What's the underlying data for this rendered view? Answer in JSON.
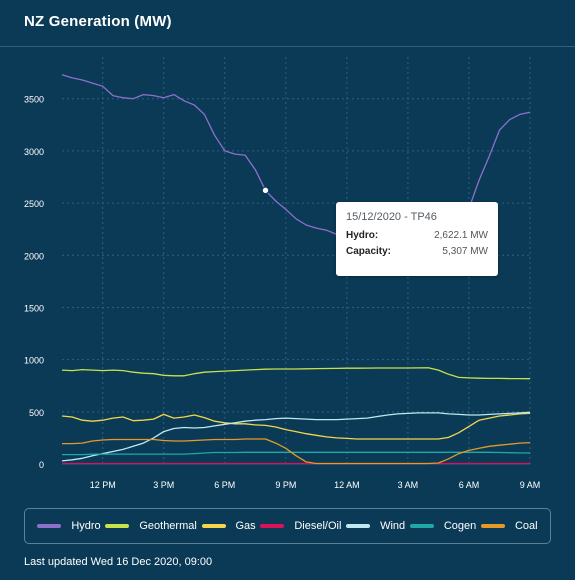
{
  "header": {
    "title": "NZ Generation (MW)"
  },
  "tooltip": {
    "heading": "15/12/2020 - TP46",
    "rows": [
      {
        "label": "Hydro:",
        "value": "2,622.1 MW"
      },
      {
        "label": "Capacity:",
        "value": "5,307 MW"
      }
    ]
  },
  "footer": {
    "updated": "Last updated Wed 16 Dec 2020, 09:00"
  },
  "colors": {
    "Hydro": "#8e6fc9",
    "Geothermal": "#c8e24a",
    "Gas": "#f2d64b",
    "Diesel/Oil": "#d8135a",
    "Wind": "#bfe8f3",
    "Cogen": "#1fa8a6",
    "Coal": "#e59a27"
  },
  "chart_data": {
    "type": "line",
    "x_unit": "hours from 10 AM",
    "x": [
      0,
      0.5,
      1,
      1.5,
      2,
      2.5,
      3,
      3.5,
      4,
      4.5,
      5,
      5.5,
      6,
      6.5,
      7,
      7.5,
      8,
      8.5,
      9,
      9.5,
      10,
      10.5,
      11,
      11.5,
      12,
      12.5,
      13,
      13.5,
      14,
      14.5,
      15,
      15.5,
      16,
      16.5,
      17,
      17.5,
      18,
      18.5,
      19,
      19.5,
      20,
      20.5,
      21,
      21.5,
      22,
      22.5,
      23
    ],
    "xticks": [
      {
        "x": 2,
        "label": "12 PM"
      },
      {
        "x": 5,
        "label": "3 PM"
      },
      {
        "x": 8,
        "label": "6 PM"
      },
      {
        "x": 11,
        "label": "9 PM"
      },
      {
        "x": 14,
        "label": "12 AM"
      },
      {
        "x": 17,
        "label": "3 AM"
      },
      {
        "x": 20,
        "label": "6 AM"
      },
      {
        "x": 23,
        "label": "9 AM"
      }
    ],
    "yticks": [
      0,
      500,
      1000,
      1500,
      2000,
      2500,
      3000,
      3500
    ],
    "ylim": [
      0,
      3900
    ],
    "grid": true,
    "legend": "bottom",
    "series": [
      {
        "name": "Hydro",
        "values": [
          3730,
          3700,
          3680,
          3650,
          3620,
          3530,
          3510,
          3500,
          3540,
          3530,
          3510,
          3540,
          3480,
          3440,
          3350,
          3150,
          3000,
          2970,
          2960,
          2820,
          2622,
          2520,
          2440,
          2350,
          2290,
          2260,
          2240,
          2200,
          2190,
          2200,
          2160,
          2130,
          2120,
          2100,
          2080,
          2060,
          2050,
          2080,
          2150,
          2280,
          2450,
          2720,
          2950,
          3200,
          3300,
          3350,
          3370
        ]
      },
      {
        "name": "Geothermal",
        "values": [
          900,
          895,
          905,
          900,
          895,
          900,
          895,
          880,
          870,
          865,
          850,
          845,
          845,
          865,
          880,
          885,
          890,
          895,
          900,
          905,
          908,
          910,
          910,
          910,
          912,
          914,
          915,
          916,
          918,
          918,
          919,
          920,
          920,
          920,
          920,
          921,
          922,
          900,
          860,
          830,
          825,
          822,
          820,
          820,
          818,
          818,
          817
        ]
      },
      {
        "name": "Gas",
        "values": [
          460,
          450,
          420,
          410,
          420,
          440,
          450,
          415,
          420,
          430,
          475,
          440,
          450,
          470,
          445,
          410,
          395,
          385,
          385,
          375,
          370,
          355,
          330,
          310,
          290,
          275,
          260,
          250,
          245,
          240,
          240,
          240,
          240,
          240,
          240,
          240,
          240,
          240,
          255,
          300,
          360,
          420,
          440,
          460,
          470,
          480,
          485
        ]
      },
      {
        "name": "Diesel/Oil",
        "values": [
          5,
          5,
          5,
          5,
          5,
          5,
          5,
          5,
          5,
          5,
          5,
          5,
          5,
          5,
          5,
          5,
          5,
          5,
          5,
          5,
          5,
          5,
          5,
          5,
          5,
          5,
          5,
          5,
          5,
          5,
          5,
          5,
          5,
          5,
          5,
          5,
          5,
          5,
          5,
          5,
          5,
          5,
          5,
          5,
          5,
          5,
          5
        ]
      },
      {
        "name": "Wind",
        "values": [
          30,
          40,
          55,
          80,
          100,
          120,
          140,
          170,
          200,
          250,
          310,
          340,
          350,
          345,
          350,
          365,
          380,
          395,
          410,
          420,
          425,
          435,
          440,
          435,
          430,
          425,
          425,
          425,
          430,
          435,
          440,
          455,
          470,
          480,
          485,
          490,
          490,
          490,
          480,
          475,
          470,
          470,
          475,
          480,
          485,
          490,
          495
        ]
      },
      {
        "name": "Cogen",
        "values": [
          90,
          90,
          90,
          95,
          95,
          95,
          95,
          95,
          95,
          95,
          95,
          95,
          95,
          100,
          105,
          110,
          110,
          110,
          112,
          112,
          112,
          112,
          112,
          112,
          112,
          112,
          112,
          112,
          112,
          112,
          112,
          112,
          112,
          112,
          112,
          112,
          112,
          112,
          112,
          112,
          112,
          112,
          112,
          110,
          108,
          106,
          105
        ]
      },
      {
        "name": "Coal",
        "values": [
          195,
          195,
          200,
          220,
          230,
          235,
          235,
          235,
          235,
          235,
          225,
          220,
          220,
          225,
          230,
          235,
          235,
          235,
          240,
          240,
          240,
          200,
          150,
          80,
          20,
          5,
          5,
          5,
          5,
          5,
          5,
          5,
          5,
          5,
          5,
          5,
          5,
          10,
          50,
          100,
          130,
          150,
          170,
          180,
          190,
          200,
          205
        ]
      }
    ]
  }
}
